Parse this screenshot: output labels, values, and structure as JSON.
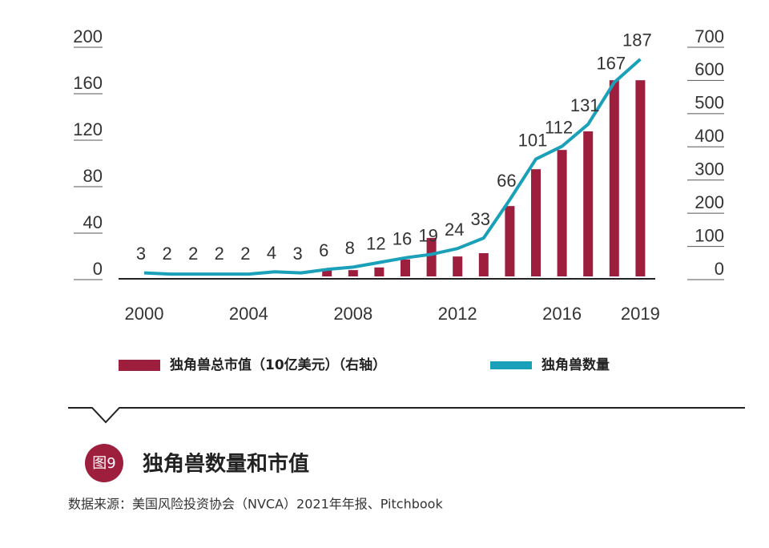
{
  "chart_data": {
    "type": "bar-line",
    "categories": [
      "2000",
      null,
      null,
      null,
      "2004",
      null,
      null,
      null,
      "2008",
      null,
      null,
      null,
      "2012",
      null,
      null,
      null,
      "2016",
      null,
      null,
      "2019"
    ],
    "series": [
      {
        "name": "独角兽总市值（10亿美元）（右轴）",
        "type": "bar",
        "axis": "y2",
        "color": "#9e1f3d",
        "values": [
          0,
          0,
          0,
          0,
          0,
          0,
          0,
          24,
          19,
          27,
          51,
          116,
          60,
          70,
          212,
          323,
          381,
          437,
          591,
          591
        ]
      },
      {
        "name": "独角兽数量",
        "type": "line",
        "color": "#1aa0b8",
        "values": [
          3,
          2,
          2,
          2,
          2,
          4,
          3,
          6,
          8,
          12,
          16,
          19,
          24,
          33,
          66,
          101,
          112,
          131,
          167,
          187
        ]
      }
    ],
    "ylim": [
      0,
      200
    ],
    "yticks": [
      0,
      40,
      80,
      120,
      160,
      200
    ],
    "y2lim": [
      0,
      700
    ],
    "y2ticks": [
      0,
      100,
      200,
      300,
      400,
      500,
      600,
      700
    ],
    "figure_label": "图9",
    "title": "独角兽数量和市值",
    "source": "数据来源：美国风险投资协会（NVCA）2021年年报、Pitchbook"
  }
}
